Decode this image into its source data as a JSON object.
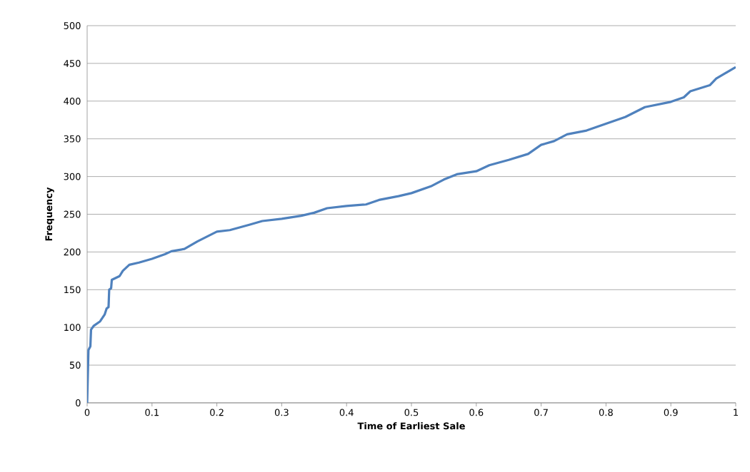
{
  "chart_data": {
    "type": "line",
    "xlabel": "Time of Earliest Sale",
    "ylabel": "Frequency",
    "x": [
      0,
      0.002,
      0.005,
      0.006,
      0.01,
      0.02,
      0.027,
      0.03,
      0.033,
      0.034,
      0.037,
      0.038,
      0.05,
      0.055,
      0.065,
      0.08,
      0.1,
      0.12,
      0.13,
      0.15,
      0.17,
      0.2,
      0.22,
      0.25,
      0.27,
      0.3,
      0.33,
      0.35,
      0.37,
      0.4,
      0.43,
      0.45,
      0.48,
      0.5,
      0.53,
      0.55,
      0.57,
      0.6,
      0.62,
      0.65,
      0.68,
      0.7,
      0.72,
      0.74,
      0.77,
      0.8,
      0.83,
      0.86,
      0.9,
      0.92,
      0.93,
      0.96,
      0.97,
      1
    ],
    "series": [
      {
        "color": "#4f81bd",
        "values": [
          0,
          70,
          75,
          97,
          102,
          108,
          117,
          125,
          127,
          150,
          152,
          163,
          168,
          175,
          183,
          186,
          191,
          197,
          201,
          204,
          214,
          227,
          229,
          236,
          241,
          244,
          248,
          252,
          258,
          261,
          263,
          269,
          274,
          278,
          287,
          296,
          303,
          307,
          315,
          322,
          330,
          342,
          347,
          356,
          361,
          370,
          379,
          392,
          399,
          405,
          413,
          421,
          430,
          445
        ]
      }
    ],
    "xlim": [
      0,
      1
    ],
    "ylim": [
      0,
      500
    ],
    "xticks": [
      0,
      0.1,
      0.2,
      0.3,
      0.4,
      0.5,
      0.6,
      0.7,
      0.8,
      0.9,
      1
    ],
    "yticks": [
      0,
      50,
      100,
      150,
      200,
      250,
      300,
      350,
      400,
      450,
      500
    ],
    "grid": "y",
    "marker": "none",
    "line_style": "solid"
  }
}
